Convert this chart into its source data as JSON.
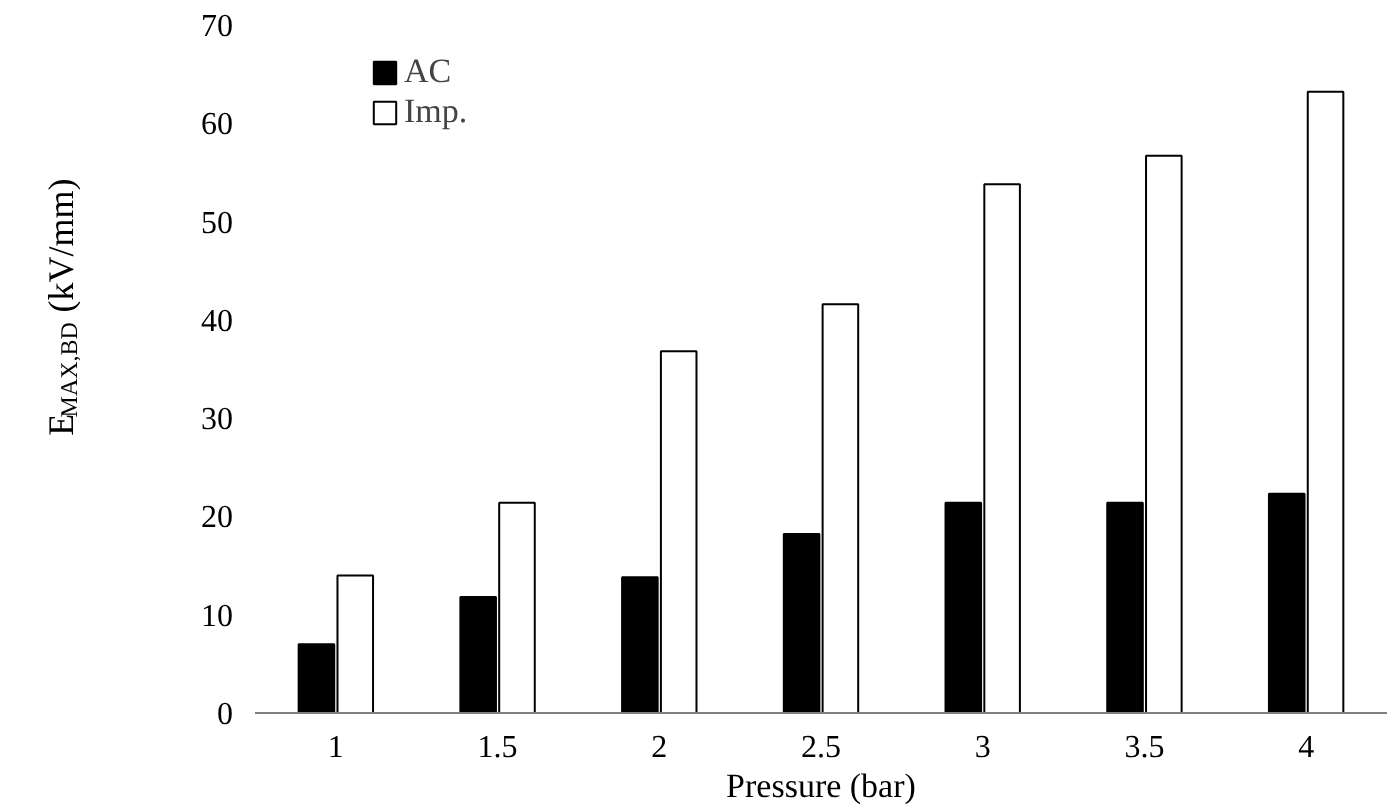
{
  "chart_data": {
    "type": "bar",
    "categories": [
      "1",
      "1.5",
      "2",
      "2.5",
      "3",
      "3.5",
      "4"
    ],
    "series": [
      {
        "name": "AC",
        "color": "#000000",
        "values": [
          7.0,
          11.8,
          13.8,
          18.2,
          21.4,
          21.4,
          22.3
        ]
      },
      {
        "name": "Imp.",
        "color": "#ffffff",
        "values": [
          14.0,
          21.4,
          36.8,
          41.6,
          53.8,
          56.7,
          63.2
        ]
      }
    ],
    "xlabel": "Pressure (bar)",
    "ylabel": "E$_{MAX,BD}$ (kV/mm)",
    "ylim": [
      0,
      70
    ],
    "yticks": [
      0,
      10,
      20,
      30,
      40,
      50,
      60,
      70
    ],
    "grid": false,
    "legend": "top left"
  }
}
